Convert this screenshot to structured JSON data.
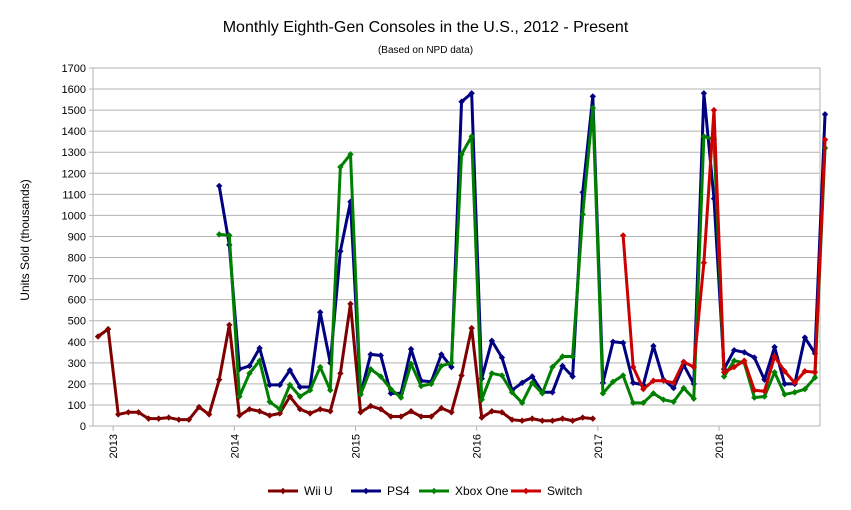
{
  "chart_data": {
    "type": "line",
    "title": "Monthly Eighth-Gen Consoles in the U.S., 2012 - Present",
    "subtitle": "(Based on NPD data)",
    "ylabel": "Units Sold (thousands)",
    "xlabel": "",
    "ylim": [
      0,
      1700
    ],
    "yticks": [
      0,
      100,
      200,
      300,
      400,
      500,
      600,
      700,
      800,
      900,
      1000,
      1100,
      1200,
      1300,
      1400,
      1500,
      1600,
      1700
    ],
    "x_tick_labels": [
      "2013",
      "2014",
      "2015",
      "2016",
      "2017",
      "2018"
    ],
    "x_range": [
      "2012-11",
      "2018-10"
    ],
    "grid": true,
    "legend_position": "bottom",
    "series": [
      {
        "name": "Wii U",
        "color": "#800000",
        "marker": "diamond",
        "start": "2012-11",
        "values": [
          425,
          460,
          55,
          65,
          65,
          35,
          35,
          40,
          30,
          30,
          90,
          55,
          220,
          480,
          50,
          80,
          70,
          50,
          60,
          140,
          80,
          60,
          80,
          70,
          250,
          580,
          65,
          95,
          80,
          45,
          45,
          70,
          45,
          45,
          85,
          65,
          240,
          465,
          40,
          70,
          65,
          30,
          25,
          35,
          25,
          25,
          35,
          25,
          40,
          35
        ]
      },
      {
        "name": "PS4",
        "color": "#000080",
        "marker": "diamond",
        "start": "2013-11",
        "values": [
          1140,
          860,
          270,
          285,
          370,
          195,
          195,
          265,
          185,
          185,
          540,
          300,
          830,
          1065,
          150,
          340,
          335,
          155,
          155,
          365,
          215,
          210,
          340,
          280,
          1540,
          1580,
          225,
          405,
          325,
          170,
          205,
          235,
          160,
          160,
          285,
          235,
          1110,
          1565,
          205,
          400,
          395,
          205,
          195,
          380,
          220,
          180,
          290,
          200,
          1580,
          1080,
          270,
          360,
          350,
          325,
          220,
          375,
          200,
          200,
          420,
          345,
          1480
        ]
      },
      {
        "name": "Xbox One",
        "color": "#008000",
        "marker": "diamond",
        "start": "2013-11",
        "values": [
          910,
          905,
          140,
          250,
          310,
          115,
          80,
          195,
          140,
          170,
          280,
          170,
          1230,
          1290,
          150,
          270,
          235,
          175,
          135,
          295,
          190,
          200,
          285,
          300,
          1290,
          1375,
          125,
          250,
          240,
          160,
          110,
          205,
          155,
          280,
          330,
          330,
          1005,
          1510,
          155,
          210,
          240,
          110,
          110,
          155,
          125,
          115,
          180,
          130,
          1375,
          1360,
          235,
          310,
          300,
          135,
          140,
          255,
          150,
          160,
          175,
          230,
          1320
        ]
      },
      {
        "name": "Switch",
        "color": "#cc0000",
        "marker": "diamond",
        "start": "2017-03",
        "values": [
          905,
          280,
          175,
          215,
          215,
          205,
          305,
          280,
          775,
          1500,
          255,
          280,
          310,
          170,
          165,
          330,
          260,
          205,
          260,
          255,
          1360
        ]
      }
    ]
  }
}
